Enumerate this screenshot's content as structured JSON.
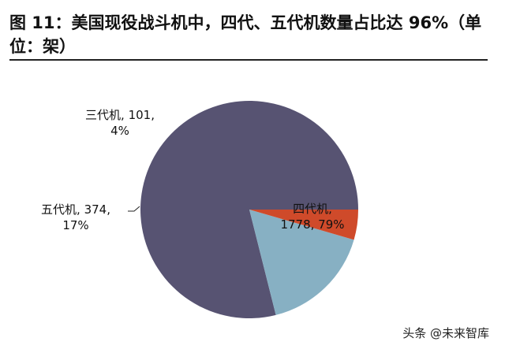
{
  "figure": {
    "title": "图 11：美国现役战斗机中，四代、五代机数量占比达 96%（单位：架）"
  },
  "chart_data": {
    "type": "pie",
    "slices": [
      {
        "name": "四代机",
        "value": 1778,
        "percent_label": "79%",
        "color": "#575372",
        "label_line1": "四代机,",
        "label_line2": "1778, 79%"
      },
      {
        "name": "五代机",
        "value": 374,
        "percent_label": "17%",
        "color": "#87b0c3",
        "label_line1": "五代机, 374,",
        "label_line2": "17%"
      },
      {
        "name": "三代机",
        "value": 101,
        "percent_label": "4%",
        "color": "#cf4a2a",
        "label_line1": "三代机, 101,",
        "label_line2": "4%"
      }
    ],
    "start_angle_deg": 0,
    "direction": "counterclockwise"
  },
  "watermark": "头条 @未来智库"
}
